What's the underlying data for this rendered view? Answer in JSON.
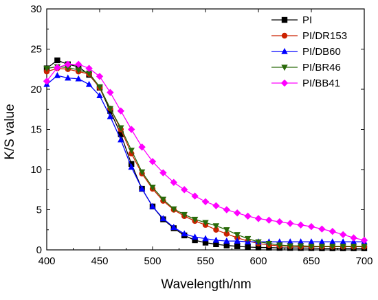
{
  "chart_data": {
    "type": "line",
    "title": "",
    "xlabel": "Wavelength/nm",
    "ylabel": "K/S value",
    "xlim": [
      400,
      700
    ],
    "ylim": [
      0,
      30
    ],
    "xticks": [
      400,
      450,
      500,
      550,
      600,
      650,
      700
    ],
    "yticks": [
      0,
      5,
      10,
      15,
      20,
      25,
      30
    ],
    "grid": false,
    "legend_position": "top-right",
    "x": [
      400,
      410,
      420,
      430,
      440,
      450,
      460,
      470,
      480,
      490,
      500,
      510,
      520,
      530,
      540,
      550,
      560,
      570,
      580,
      590,
      600,
      610,
      620,
      630,
      640,
      650,
      660,
      670,
      680,
      690,
      700
    ],
    "series": [
      {
        "name": "PI",
        "color": "#000000",
        "marker": "square",
        "values": [
          22.6,
          23.6,
          23.1,
          22.8,
          21.8,
          20.2,
          17.3,
          14.4,
          10.7,
          7.6,
          5.4,
          3.8,
          2.7,
          1.8,
          1.2,
          0.9,
          0.7,
          0.55,
          0.45,
          0.35,
          0.3,
          0.28,
          0.25,
          0.24,
          0.23,
          0.22,
          0.2,
          0.2,
          0.2,
          0.2,
          0.2
        ]
      },
      {
        "name": "PI/DR153",
        "color": "#cc2200",
        "marker": "circle",
        "values": [
          22.2,
          22.6,
          22.5,
          22.2,
          21.9,
          20.2,
          17.6,
          15.0,
          12.0,
          9.5,
          7.6,
          6.1,
          5.0,
          4.2,
          3.6,
          3.1,
          2.5,
          2.0,
          1.5,
          1.1,
          0.8,
          0.6,
          0.5,
          0.45,
          0.4,
          0.4,
          0.4,
          0.4,
          0.4,
          0.4,
          0.4
        ]
      },
      {
        "name": "PI/DB60",
        "color": "#0000ff",
        "marker": "triangle-up",
        "values": [
          20.6,
          21.7,
          21.4,
          21.3,
          20.6,
          19.2,
          16.6,
          13.7,
          10.3,
          7.6,
          5.4,
          3.9,
          2.8,
          2.0,
          1.6,
          1.4,
          1.2,
          1.1,
          1.1,
          1.0,
          1.0,
          1.0,
          1.0,
          1.0,
          1.0,
          1.0,
          1.0,
          1.0,
          1.0,
          1.0,
          1.0
        ]
      },
      {
        "name": "PI/BR46",
        "color": "#2a6a0a",
        "marker": "triangle-down",
        "values": [
          22.6,
          22.8,
          22.7,
          22.4,
          22.0,
          20.3,
          17.6,
          15.2,
          12.4,
          9.7,
          7.8,
          6.3,
          5.1,
          4.4,
          3.8,
          3.4,
          3.0,
          2.5,
          1.9,
          1.4,
          1.0,
          0.8,
          0.6,
          0.5,
          0.5,
          0.45,
          0.45,
          0.45,
          0.45,
          0.45,
          0.45
        ]
      },
      {
        "name": "PI/BB41",
        "color": "#ff00ff",
        "marker": "diamond",
        "values": [
          21.0,
          22.7,
          23.1,
          23.1,
          22.6,
          21.6,
          19.6,
          17.3,
          15.0,
          12.8,
          11.0,
          9.6,
          8.4,
          7.5,
          6.7,
          6.0,
          5.5,
          5.0,
          4.6,
          4.2,
          3.9,
          3.7,
          3.5,
          3.3,
          3.1,
          2.9,
          2.6,
          2.3,
          1.9,
          1.5,
          1.2
        ]
      }
    ]
  }
}
